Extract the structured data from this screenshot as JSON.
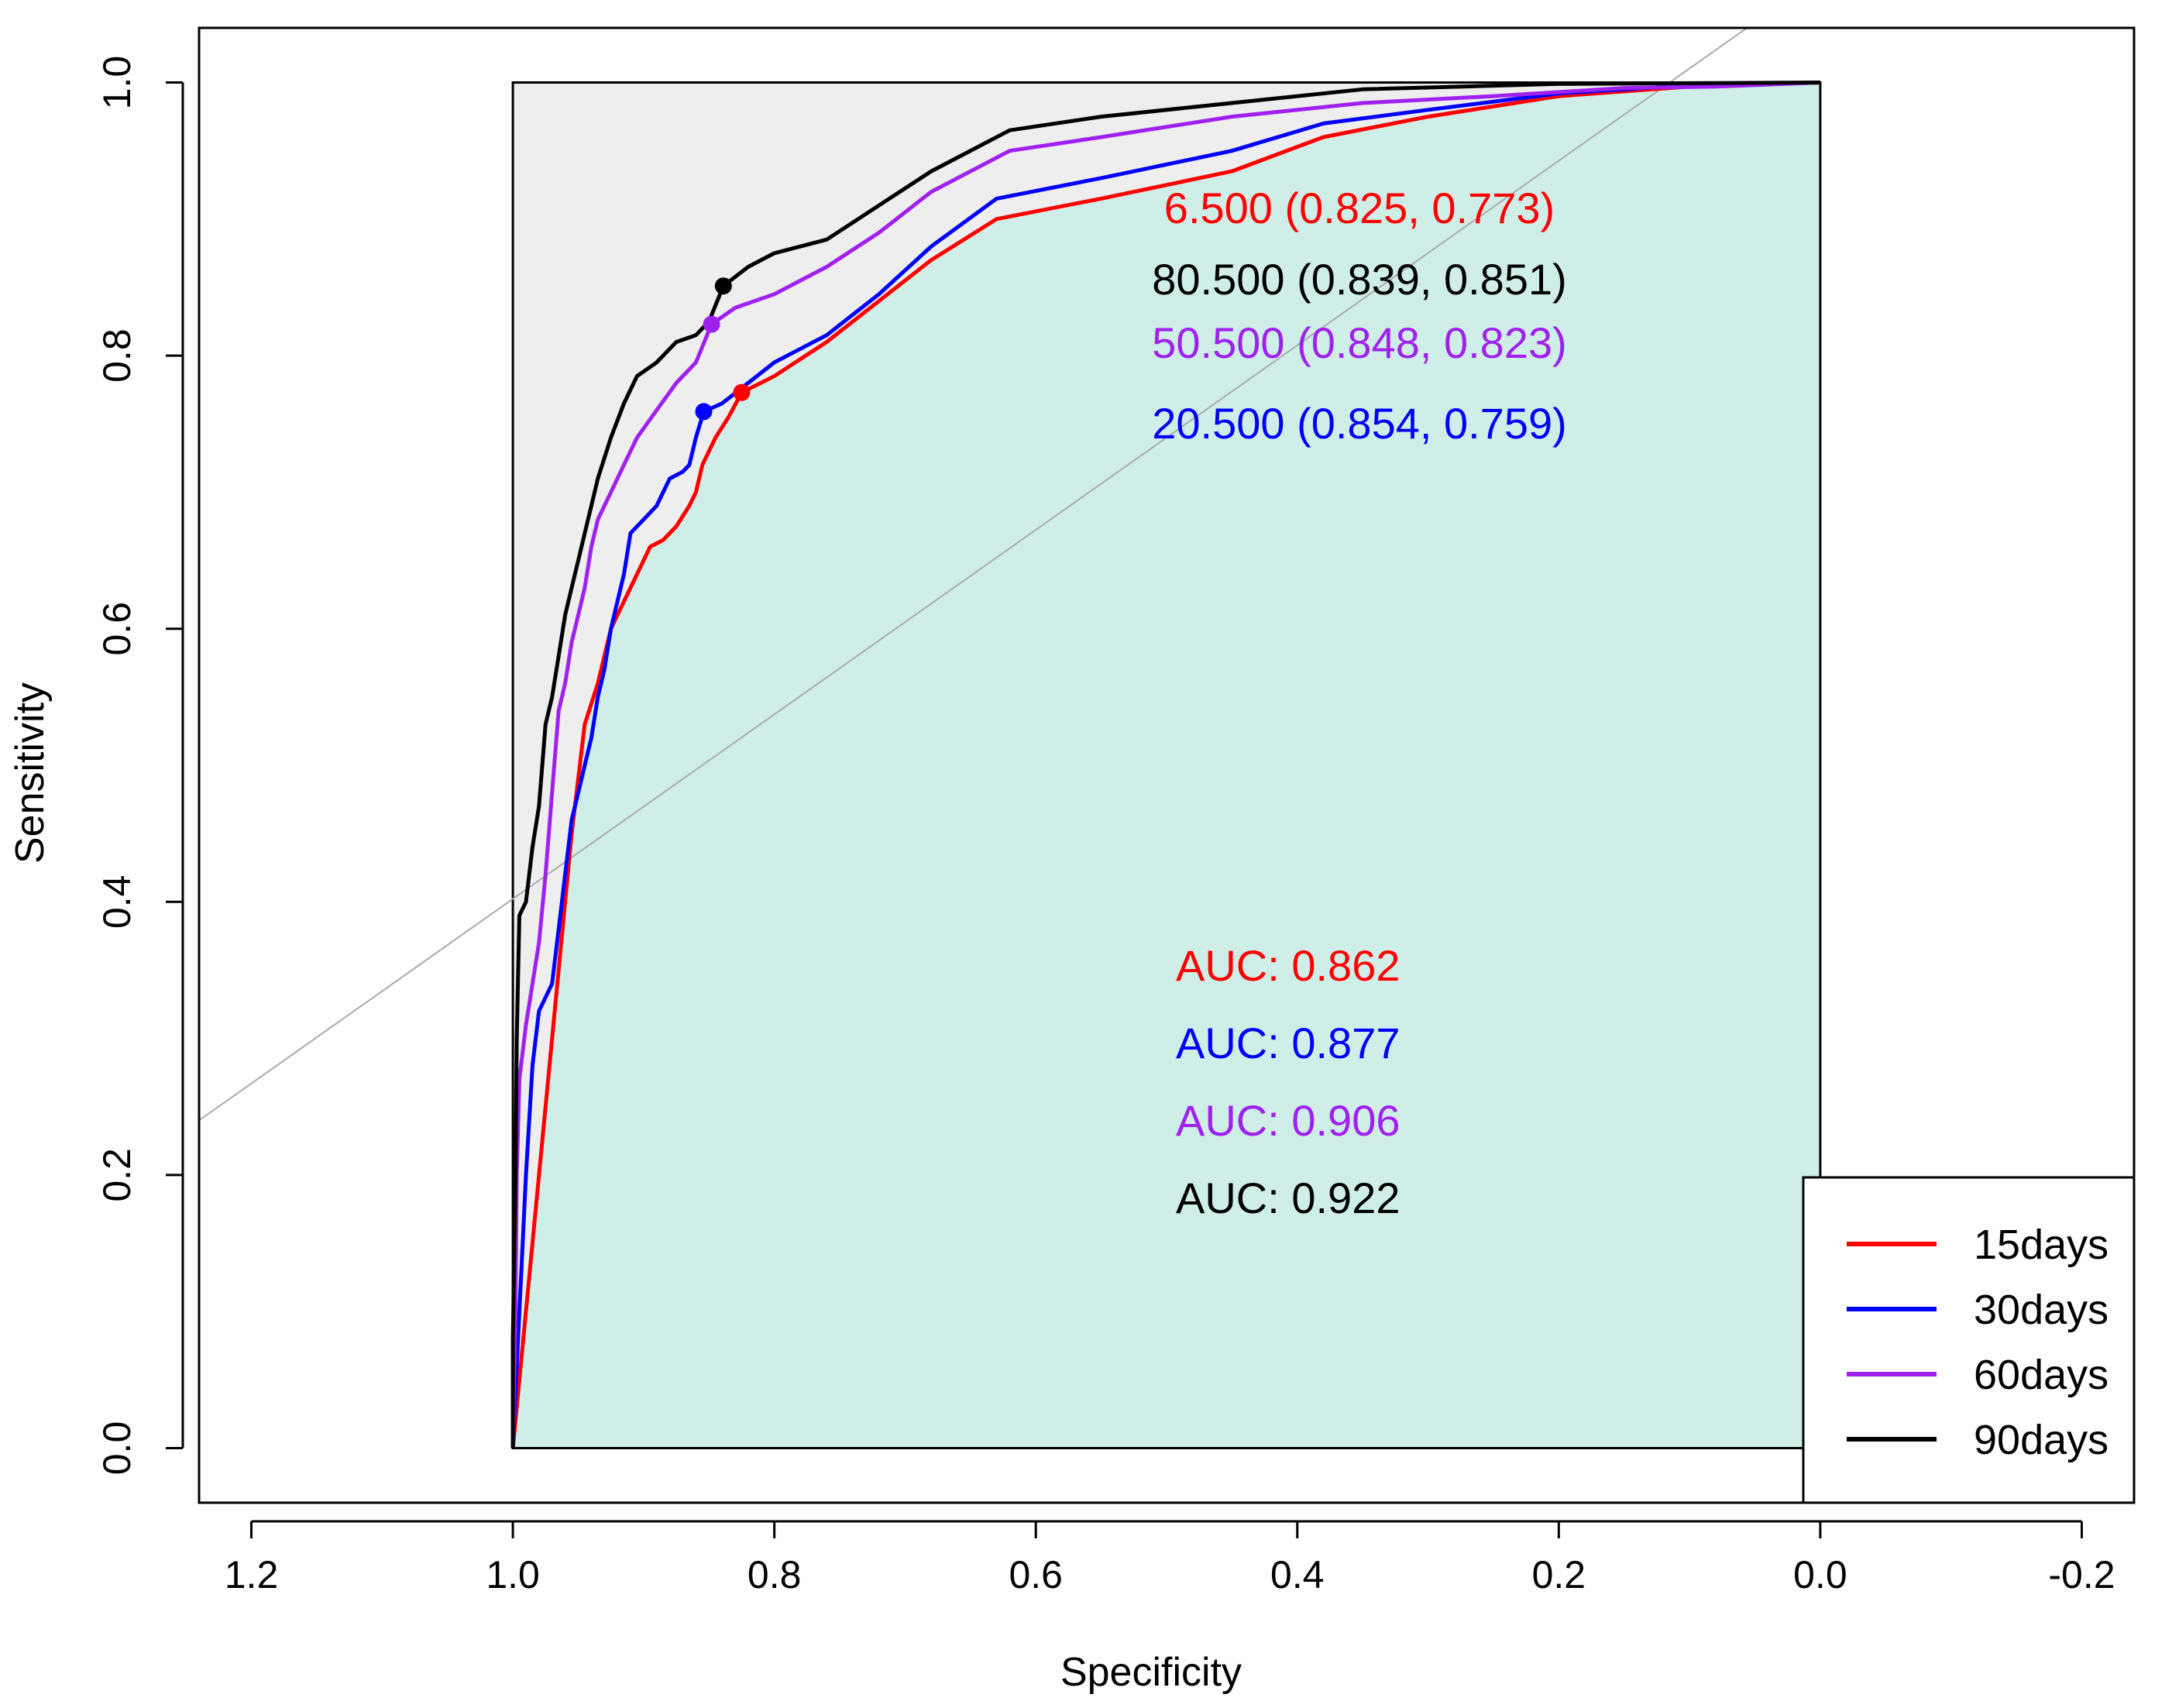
{
  "chart_data": {
    "type": "line",
    "xlabel": "Specificity",
    "ylabel": "Sensitivity",
    "xlim": [
      1.24,
      -0.24
    ],
    "ylim": [
      -0.04,
      1.04
    ],
    "x_ticks": [
      {
        "value": 1.2,
        "label": "1.2"
      },
      {
        "value": 1.0,
        "label": "1.0"
      },
      {
        "value": 0.8,
        "label": "0.8"
      },
      {
        "value": 0.6,
        "label": "0.6"
      },
      {
        "value": 0.4,
        "label": "0.4"
      },
      {
        "value": 0.2,
        "label": "0.2"
      },
      {
        "value": 0.0,
        "label": "0.0"
      },
      {
        "value": -0.2,
        "label": "-0.2"
      }
    ],
    "y_ticks": [
      {
        "value": 0.0,
        "label": "0.0"
      },
      {
        "value": 0.2,
        "label": "0.2"
      },
      {
        "value": 0.4,
        "label": "0.4"
      },
      {
        "value": 0.6,
        "label": "0.6"
      },
      {
        "value": 0.8,
        "label": "0.8"
      },
      {
        "value": 1.0,
        "label": "1.0"
      }
    ],
    "diagonal": true,
    "colors": {
      "auc_fill": "#cfeee8",
      "top_fill": "#eeeeee",
      "diagonal": "#aaaaaa"
    },
    "series": [
      {
        "name": "15days",
        "color": "#ff0000",
        "points": [
          [
            1.0,
            0.0
          ],
          [
            0.995,
            0.05
          ],
          [
            0.985,
            0.15
          ],
          [
            0.975,
            0.25
          ],
          [
            0.965,
            0.35
          ],
          [
            0.955,
            0.45
          ],
          [
            0.945,
            0.53
          ],
          [
            0.935,
            0.56
          ],
          [
            0.925,
            0.6
          ],
          [
            0.915,
            0.62
          ],
          [
            0.905,
            0.64
          ],
          [
            0.895,
            0.66
          ],
          [
            0.885,
            0.665
          ],
          [
            0.875,
            0.675
          ],
          [
            0.865,
            0.69
          ],
          [
            0.86,
            0.7
          ],
          [
            0.855,
            0.72
          ],
          [
            0.845,
            0.74
          ],
          [
            0.835,
            0.755
          ],
          [
            0.825,
            0.773
          ],
          [
            0.8,
            0.785
          ],
          [
            0.76,
            0.81
          ],
          [
            0.72,
            0.84
          ],
          [
            0.68,
            0.87
          ],
          [
            0.63,
            0.9
          ],
          [
            0.55,
            0.915
          ],
          [
            0.45,
            0.935
          ],
          [
            0.38,
            0.96
          ],
          [
            0.3,
            0.975
          ],
          [
            0.2,
            0.99
          ],
          [
            0.1,
            0.997
          ],
          [
            0.0,
            1.0
          ]
        ],
        "threshold": {
          "spec": 0.825,
          "sens": 0.773,
          "label": "6.500 (0.825, 0.773)"
        },
        "auc_label": "AUC: 0.862"
      },
      {
        "name": "30days",
        "color": "#0000ff",
        "points": [
          [
            1.0,
            0.0
          ],
          [
            0.995,
            0.1
          ],
          [
            0.99,
            0.2
          ],
          [
            0.985,
            0.28
          ],
          [
            0.98,
            0.32
          ],
          [
            0.97,
            0.34
          ],
          [
            0.965,
            0.38
          ],
          [
            0.96,
            0.42
          ],
          [
            0.955,
            0.46
          ],
          [
            0.95,
            0.48
          ],
          [
            0.945,
            0.5
          ],
          [
            0.94,
            0.52
          ],
          [
            0.935,
            0.55
          ],
          [
            0.93,
            0.57
          ],
          [
            0.925,
            0.6
          ],
          [
            0.915,
            0.64
          ],
          [
            0.91,
            0.67
          ],
          [
            0.9,
            0.68
          ],
          [
            0.89,
            0.69
          ],
          [
            0.88,
            0.71
          ],
          [
            0.87,
            0.715
          ],
          [
            0.865,
            0.72
          ],
          [
            0.86,
            0.74
          ],
          [
            0.854,
            0.759
          ],
          [
            0.84,
            0.765
          ],
          [
            0.82,
            0.78
          ],
          [
            0.8,
            0.795
          ],
          [
            0.76,
            0.815
          ],
          [
            0.72,
            0.845
          ],
          [
            0.68,
            0.88
          ],
          [
            0.63,
            0.915
          ],
          [
            0.55,
            0.93
          ],
          [
            0.45,
            0.95
          ],
          [
            0.38,
            0.97
          ],
          [
            0.3,
            0.98
          ],
          [
            0.2,
            0.992
          ],
          [
            0.1,
            0.998
          ],
          [
            0.0,
            1.0
          ]
        ],
        "threshold": {
          "spec": 0.854,
          "sens": 0.759,
          "label": "20.500 (0.854, 0.759)"
        },
        "auc_label": "AUC: 0.877"
      },
      {
        "name": "60days",
        "color": "#a020f0",
        "points": [
          [
            1.0,
            0.0
          ],
          [
            0.998,
            0.1
          ],
          [
            0.997,
            0.2
          ],
          [
            0.995,
            0.27
          ],
          [
            0.99,
            0.31
          ],
          [
            0.985,
            0.34
          ],
          [
            0.98,
            0.37
          ],
          [
            0.975,
            0.42
          ],
          [
            0.97,
            0.48
          ],
          [
            0.965,
            0.54
          ],
          [
            0.96,
            0.56
          ],
          [
            0.955,
            0.59
          ],
          [
            0.95,
            0.61
          ],
          [
            0.945,
            0.63
          ],
          [
            0.94,
            0.66
          ],
          [
            0.935,
            0.68
          ],
          [
            0.925,
            0.7
          ],
          [
            0.915,
            0.72
          ],
          [
            0.905,
            0.74
          ],
          [
            0.89,
            0.76
          ],
          [
            0.875,
            0.78
          ],
          [
            0.86,
            0.795
          ],
          [
            0.848,
            0.823
          ],
          [
            0.83,
            0.835
          ],
          [
            0.8,
            0.845
          ],
          [
            0.76,
            0.865
          ],
          [
            0.72,
            0.89
          ],
          [
            0.68,
            0.92
          ],
          [
            0.62,
            0.95
          ],
          [
            0.55,
            0.96
          ],
          [
            0.45,
            0.975
          ],
          [
            0.35,
            0.985
          ],
          [
            0.25,
            0.99
          ],
          [
            0.15,
            0.996
          ],
          [
            0.08,
            0.997
          ],
          [
            0.0,
            1.0
          ]
        ],
        "threshold": {
          "spec": 0.848,
          "sens": 0.823,
          "label": "50.500 (0.848, 0.823)"
        },
        "auc_label": "AUC: 0.906"
      },
      {
        "name": "90days",
        "color": "#000000",
        "points": [
          [
            1.0,
            0.0
          ],
          [
            1.0,
            0.08
          ],
          [
            0.998,
            0.2
          ],
          [
            0.997,
            0.3
          ],
          [
            0.995,
            0.39
          ],
          [
            0.99,
            0.4
          ],
          [
            0.985,
            0.44
          ],
          [
            0.98,
            0.47
          ],
          [
            0.975,
            0.53
          ],
          [
            0.97,
            0.55
          ],
          [
            0.965,
            0.58
          ],
          [
            0.96,
            0.61
          ],
          [
            0.955,
            0.63
          ],
          [
            0.95,
            0.65
          ],
          [
            0.945,
            0.67
          ],
          [
            0.94,
            0.69
          ],
          [
            0.935,
            0.71
          ],
          [
            0.925,
            0.74
          ],
          [
            0.915,
            0.765
          ],
          [
            0.905,
            0.785
          ],
          [
            0.89,
            0.795
          ],
          [
            0.875,
            0.81
          ],
          [
            0.86,
            0.815
          ],
          [
            0.85,
            0.825
          ],
          [
            0.839,
            0.851
          ],
          [
            0.82,
            0.865
          ],
          [
            0.8,
            0.875
          ],
          [
            0.76,
            0.885
          ],
          [
            0.72,
            0.91
          ],
          [
            0.68,
            0.935
          ],
          [
            0.62,
            0.965
          ],
          [
            0.55,
            0.975
          ],
          [
            0.45,
            0.985
          ],
          [
            0.35,
            0.995
          ],
          [
            0.2,
            0.999
          ],
          [
            0.0,
            1.0
          ]
        ],
        "threshold": {
          "spec": 0.839,
          "sens": 0.851,
          "label": "80.500 (0.839, 0.851)"
        },
        "auc_label": "AUC: 0.922"
      }
    ],
    "threshold_label_order": [
      "15days",
      "90days",
      "60days",
      "30days"
    ],
    "auc_label_order": [
      "15days",
      "30days",
      "60days",
      "90days"
    ],
    "legend": {
      "placement": "bottom-right",
      "entries": [
        "15days",
        "30days",
        "60days",
        "90days"
      ]
    }
  }
}
